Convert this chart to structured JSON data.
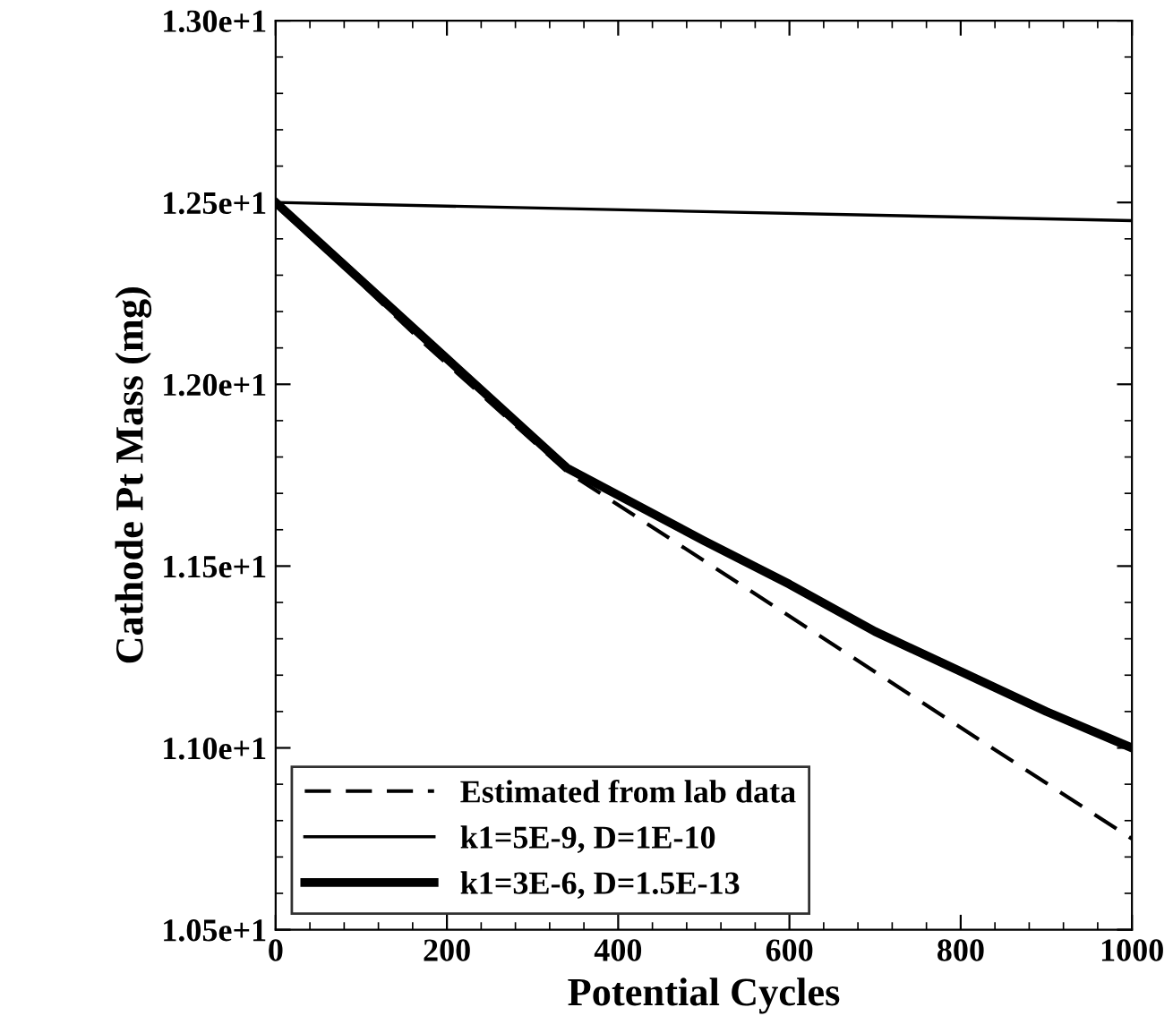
{
  "chart_data": {
    "type": "line",
    "xlabel": "Potential Cycles",
    "ylabel": "Cathode Pt Mass (mg)",
    "xlim": [
      0,
      1000
    ],
    "xticks": [
      0,
      200,
      400,
      600,
      800,
      1000
    ],
    "ylim": [
      10.5,
      13.0
    ],
    "yticks": [
      {
        "value": 10.5,
        "label": "1.05e+1"
      },
      {
        "value": 11.0,
        "label": "1.10e+1"
      },
      {
        "value": 11.5,
        "label": "1.15e+1"
      },
      {
        "value": 12.0,
        "label": "1.20e+1"
      },
      {
        "value": 12.5,
        "label": "1.25e+1"
      },
      {
        "value": 13.0,
        "label": "1.30e+1"
      }
    ],
    "grid": false,
    "legend": "bottom left",
    "marker": "none",
    "series": [
      {
        "name": "Estimated from lab data",
        "color": "#000000",
        "line_style": "dashed",
        "x": [
          0,
          170,
          340,
          1000
        ],
        "values": [
          12.5,
          12.12,
          11.76,
          10.75
        ]
      },
      {
        "name": "k1=5E-9, D=1E-10",
        "color": "#000000",
        "line_style": "solid",
        "x": [
          0,
          1000
        ],
        "values": [
          12.5,
          12.45
        ]
      },
      {
        "name": "k1=3E-6, D=1.5E-13",
        "color": "#000000",
        "line_style": "solid",
        "x": [
          0,
          340,
          500,
          600,
          700,
          800,
          900,
          1000
        ],
        "values": [
          12.5,
          11.77,
          11.57,
          11.45,
          11.32,
          11.21,
          11.1,
          11.0
        ]
      }
    ]
  }
}
